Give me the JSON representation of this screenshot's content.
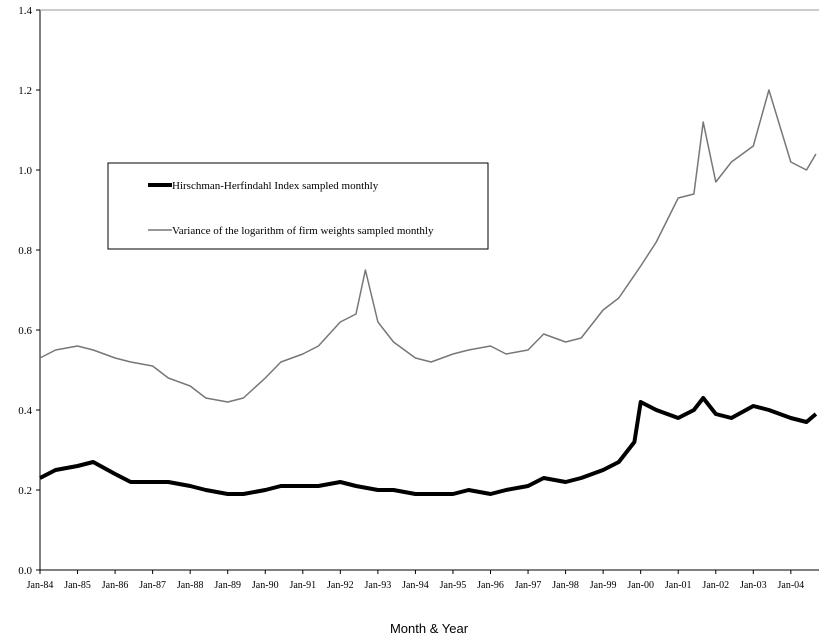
{
  "chart_data": {
    "type": "line",
    "xlabel": "Month & Year",
    "ylabel": "",
    "ylim": [
      0,
      1.4
    ],
    "yticks": [
      "0.0",
      "0.2",
      "0.4",
      "0.6",
      "0.8",
      "1.0",
      "1.2",
      "1.4"
    ],
    "categories": [
      "Jan-84",
      "Jan-85",
      "Jan-86",
      "Jan-87",
      "Jan-88",
      "Jan-89",
      "Jan-90",
      "Jan-91",
      "Jan-92",
      "Jan-93",
      "Jan-94",
      "Jan-95",
      "Jan-96",
      "Jan-97",
      "Jan-98",
      "Jan-99",
      "Jan-00",
      "Jan-01",
      "Jan-02",
      "Jan-03",
      "Jan-04"
    ],
    "grid": false,
    "legend_position": "upper-left",
    "series": [
      {
        "name": "Hirschman-Herfindahl Index sampled monthly",
        "color": "#000000",
        "style": "thick",
        "x": [
          "1984-01",
          "1984-06",
          "1985-01",
          "1985-06",
          "1986-01",
          "1986-06",
          "1987-01",
          "1987-06",
          "1988-01",
          "1988-06",
          "1989-01",
          "1989-06",
          "1990-01",
          "1990-06",
          "1991-01",
          "1991-06",
          "1992-01",
          "1992-06",
          "1993-01",
          "1993-06",
          "1994-01",
          "1994-06",
          "1995-01",
          "1995-06",
          "1996-01",
          "1996-06",
          "1997-01",
          "1997-06",
          "1998-01",
          "1998-06",
          "1999-01",
          "1999-06",
          "1999-11",
          "2000-01",
          "2000-06",
          "2001-01",
          "2001-06",
          "2001-09",
          "2002-01",
          "2002-06",
          "2003-01",
          "2003-06",
          "2004-01",
          "2004-06",
          "2004-09"
        ],
        "values": [
          0.23,
          0.25,
          0.26,
          0.27,
          0.24,
          0.22,
          0.22,
          0.22,
          0.21,
          0.2,
          0.19,
          0.19,
          0.2,
          0.21,
          0.21,
          0.21,
          0.22,
          0.21,
          0.2,
          0.2,
          0.19,
          0.19,
          0.19,
          0.2,
          0.19,
          0.2,
          0.21,
          0.23,
          0.22,
          0.23,
          0.25,
          0.27,
          0.32,
          0.42,
          0.4,
          0.38,
          0.4,
          0.43,
          0.39,
          0.38,
          0.41,
          0.4,
          0.38,
          0.37,
          0.39
        ]
      },
      {
        "name": "Variance of the logarithm of firm weights sampled monthly",
        "color": "#777777",
        "style": "thin",
        "x": [
          "1984-01",
          "1984-06",
          "1985-01",
          "1985-06",
          "1986-01",
          "1986-06",
          "1987-01",
          "1987-06",
          "1988-01",
          "1988-06",
          "1989-01",
          "1989-06",
          "1990-01",
          "1990-06",
          "1991-01",
          "1991-06",
          "1992-01",
          "1992-06",
          "1992-09",
          "1993-01",
          "1993-06",
          "1994-01",
          "1994-06",
          "1995-01",
          "1995-06",
          "1996-01",
          "1996-06",
          "1997-01",
          "1997-06",
          "1998-01",
          "1998-06",
          "1999-01",
          "1999-06",
          "2000-01",
          "2000-06",
          "2001-01",
          "2001-06",
          "2001-09",
          "2002-01",
          "2002-06",
          "2003-01",
          "2003-06",
          "2004-01",
          "2004-06",
          "2004-09"
        ],
        "values": [
          0.53,
          0.55,
          0.56,
          0.55,
          0.53,
          0.52,
          0.51,
          0.48,
          0.46,
          0.43,
          0.42,
          0.43,
          0.48,
          0.52,
          0.54,
          0.56,
          0.62,
          0.64,
          0.75,
          0.62,
          0.57,
          0.53,
          0.52,
          0.54,
          0.55,
          0.56,
          0.54,
          0.55,
          0.59,
          0.57,
          0.58,
          0.65,
          0.68,
          0.76,
          0.82,
          0.93,
          0.94,
          1.12,
          0.97,
          1.02,
          1.06,
          1.2,
          1.02,
          1.0,
          1.04
        ]
      }
    ]
  }
}
